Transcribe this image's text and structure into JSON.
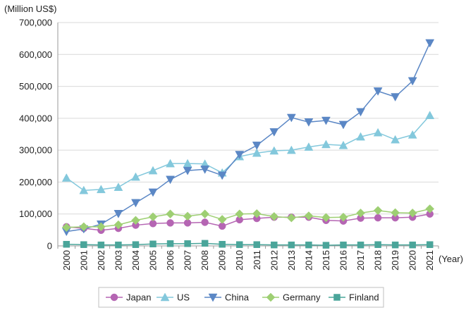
{
  "chart_data": {
    "type": "line",
    "ylabel": "(Million US$)",
    "xlabel": "(Year)",
    "ylim": [
      0,
      700000
    ],
    "yticks": [
      "0",
      "100,000",
      "200,000",
      "300,000",
      "400,000",
      "500,000",
      "600,000",
      "700,000"
    ],
    "ytick_values": [
      0,
      100000,
      200000,
      300000,
      400000,
      500000,
      600000,
      700000
    ],
    "categories": [
      "2000",
      "2001",
      "2002",
      "2003",
      "2004",
      "2005",
      "2006",
      "2007",
      "2008",
      "2009",
      "2010",
      "2011",
      "2012",
      "2013",
      "2014",
      "2015",
      "2016",
      "2017",
      "2018",
      "2019",
      "2020",
      "2021"
    ],
    "grid": "horizontal",
    "legend_position": "bottom",
    "series": [
      {
        "name": "Japan",
        "color": "#b565b3",
        "marker": "circle",
        "values": [
          60000,
          55000,
          49000,
          55000,
          65000,
          70000,
          72000,
          72000,
          74000,
          62000,
          82000,
          86000,
          90000,
          90000,
          90000,
          80000,
          78000,
          87000,
          88000,
          88000,
          90000,
          100000
        ]
      },
      {
        "name": "US",
        "color": "#83c8dc",
        "marker": "triangle-up",
        "values": [
          213000,
          174000,
          177000,
          184000,
          216000,
          236000,
          258000,
          258000,
          257000,
          229000,
          280000,
          291000,
          298000,
          300000,
          310000,
          318000,
          315000,
          342000,
          355000,
          333000,
          348000,
          409000
        ]
      },
      {
        "name": "China",
        "color": "#5b87c5",
        "marker": "triangle-down",
        "values": [
          45000,
          53000,
          68000,
          101000,
          135000,
          168000,
          208000,
          236000,
          240000,
          221000,
          286000,
          315000,
          357000,
          402000,
          388000,
          393000,
          380000,
          420000,
          485000,
          467000,
          517000,
          636000
        ]
      },
      {
        "name": "Germany",
        "color": "#9ecf73",
        "marker": "diamond",
        "values": [
          58000,
          60000,
          60000,
          66000,
          80000,
          91000,
          100000,
          93000,
          100000,
          83000,
          100000,
          101000,
          92000,
          88000,
          94000,
          89000,
          90000,
          103000,
          111000,
          104000,
          103000,
          116000
        ]
      },
      {
        "name": "Finland",
        "color": "#4aa59a",
        "marker": "square",
        "values": [
          5000,
          4000,
          3000,
          3000,
          4000,
          6000,
          7000,
          7000,
          8000,
          5000,
          4000,
          4000,
          3000,
          3000,
          3000,
          2000,
          3000,
          3000,
          4000,
          3000,
          3000,
          4000
        ]
      }
    ]
  }
}
